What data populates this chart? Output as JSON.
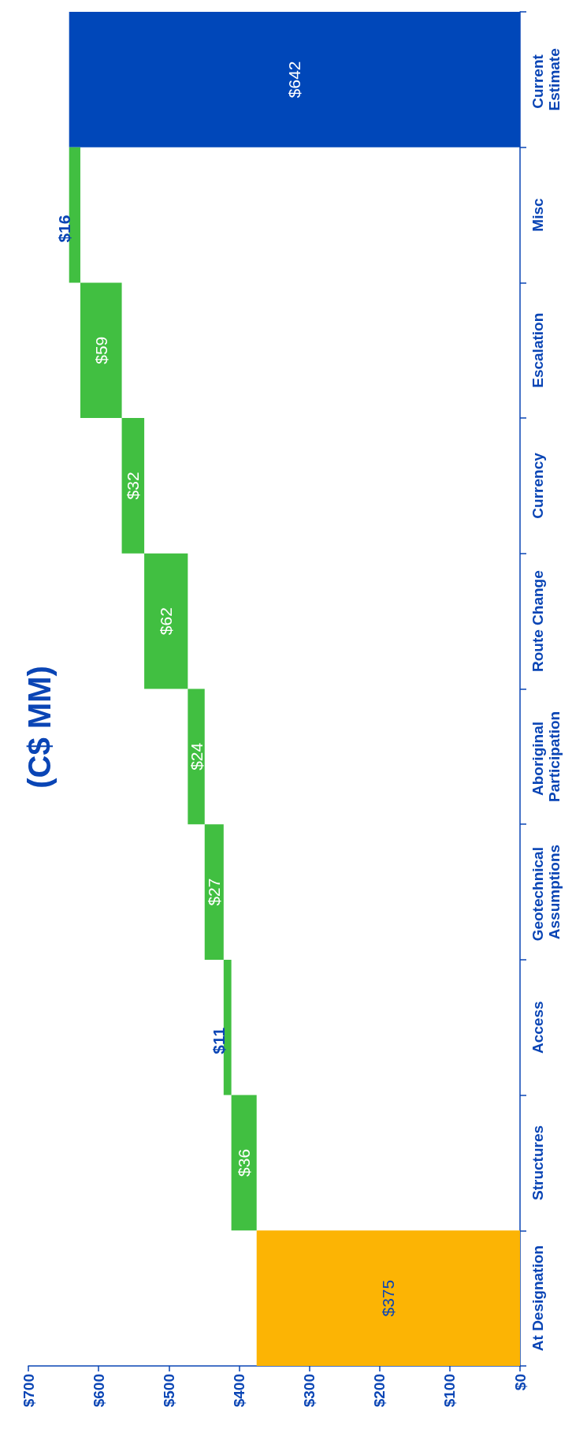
{
  "chart_data": {
    "type": "bar",
    "orientation": "horizontal",
    "title": "(C$ MM)",
    "categories": [
      "Current Estimate",
      "Misc",
      "Escalation",
      "Currency",
      "Route Change",
      "Aboriginal Participation",
      "Geotechnical Assumptions",
      "Access",
      "Structures",
      "At Designation"
    ],
    "values": [
      642,
      16,
      59,
      32,
      62,
      24,
      27,
      11,
      36,
      375
    ],
    "base": [
      0,
      626,
      567,
      535,
      473,
      449,
      422,
      411,
      375,
      0
    ],
    "colors": [
      "#0047b9",
      "#41bf41",
      "#41bf41",
      "#41bf41",
      "#41bf41",
      "#41bf41",
      "#41bf41",
      "#41bf41",
      "#41bf41",
      "#fcb404"
    ],
    "value_labels": [
      "$642",
      "$16",
      "$59",
      "$32",
      "$62",
      "$24",
      "$27",
      "$11",
      "$36",
      "$375"
    ],
    "xlim": [
      700,
      0
    ],
    "xticks": [
      {
        "value": 700,
        "label": "$700"
      },
      {
        "value": 600,
        "label": "$600"
      },
      {
        "value": 500,
        "label": "$500"
      },
      {
        "value": 400,
        "label": "$400"
      },
      {
        "value": 300,
        "label": "$300"
      },
      {
        "value": 200,
        "label": "$200"
      },
      {
        "value": 100,
        "label": "$100"
      },
      {
        "value": 0,
        "label": "$0"
      }
    ],
    "grid": false
  }
}
